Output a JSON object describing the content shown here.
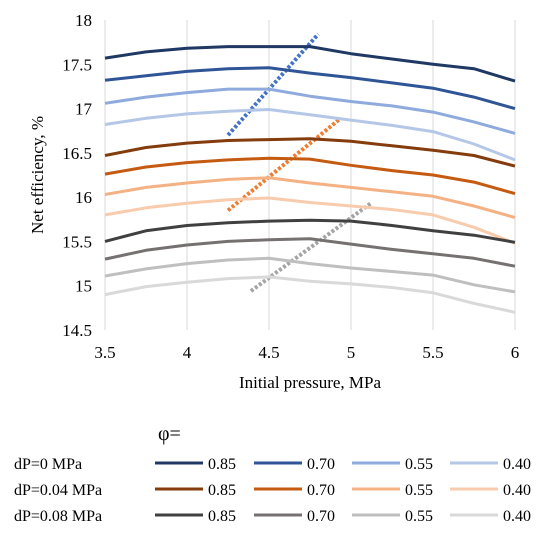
{
  "chart_data": {
    "type": "line",
    "xlabel": "Initial pressure, MPa",
    "ylabel": "Net efficiency, %",
    "xlim": [
      3.5,
      6
    ],
    "ylim": [
      14.5,
      18
    ],
    "x_ticks": [
      "3.5",
      "4",
      "4.5",
      "5",
      "5.5",
      "6"
    ],
    "y_ticks": [
      "14.5",
      "15",
      "15.5",
      "16",
      "16.5",
      "17",
      "17.5",
      "18"
    ],
    "grid": "vertical",
    "legend": {
      "header": "φ=",
      "rows": [
        "dP=0 MPa",
        "dP=0.04 MPa",
        "dP=0.08 MPa"
      ],
      "phi_labels": [
        "0.85",
        "0.70",
        "0.55",
        "0.40"
      ],
      "placement": "bottom"
    },
    "series": [
      {
        "name": "0.85",
        "group": "dP=0 MPa",
        "color": "#1f3864",
        "x": [
          3.5,
          3.75,
          4,
          4.25,
          4.5,
          4.75,
          5,
          5.25,
          5.5,
          5.75,
          6
        ],
        "y": [
          17.57,
          17.64,
          17.68,
          17.7,
          17.7,
          17.7,
          17.62,
          17.56,
          17.5,
          17.45,
          17.31
        ]
      },
      {
        "name": "0.70",
        "group": "dP=0 MPa",
        "color": "#2f5597",
        "x": [
          3.5,
          3.75,
          4,
          4.25,
          4.5,
          4.75,
          5,
          5.25,
          5.5,
          5.75,
          6
        ],
        "y": [
          17.32,
          17.37,
          17.42,
          17.45,
          17.46,
          17.4,
          17.35,
          17.29,
          17.23,
          17.13,
          17.0
        ]
      },
      {
        "name": "0.55",
        "group": "dP=0 MPa",
        "color": "#8faadc",
        "x": [
          3.5,
          3.75,
          4,
          4.25,
          4.5,
          4.75,
          5,
          5.25,
          5.5,
          5.75,
          6
        ],
        "y": [
          17.06,
          17.13,
          17.18,
          17.22,
          17.22,
          17.14,
          17.08,
          17.03,
          16.96,
          16.85,
          16.72
        ]
      },
      {
        "name": "0.40",
        "group": "dP=0 MPa",
        "color": "#b4c7e7",
        "x": [
          3.5,
          3.75,
          4,
          4.25,
          4.5,
          4.75,
          5,
          5.25,
          5.5,
          5.75,
          6
        ],
        "y": [
          16.82,
          16.89,
          16.94,
          16.97,
          16.99,
          16.93,
          16.87,
          16.81,
          16.74,
          16.6,
          16.42
        ]
      },
      {
        "name": "0.85",
        "group": "dP=0.04 MPa",
        "color": "#843c0c",
        "x": [
          3.5,
          3.75,
          4,
          4.25,
          4.5,
          4.75,
          5,
          5.25,
          5.5,
          5.75,
          6
        ],
        "y": [
          16.47,
          16.56,
          16.61,
          16.64,
          16.65,
          16.66,
          16.63,
          16.58,
          16.53,
          16.47,
          16.35
        ]
      },
      {
        "name": "0.70",
        "group": "dP=0.04 MPa",
        "color": "#c55a11",
        "x": [
          3.5,
          3.75,
          4,
          4.25,
          4.5,
          4.75,
          5,
          5.25,
          5.5,
          5.75,
          6
        ],
        "y": [
          16.26,
          16.34,
          16.39,
          16.42,
          16.44,
          16.43,
          16.36,
          16.3,
          16.25,
          16.17,
          16.04
        ]
      },
      {
        "name": "0.55",
        "group": "dP=0.04 MPa",
        "color": "#f4b183",
        "x": [
          3.5,
          3.75,
          4,
          4.25,
          4.5,
          4.75,
          5,
          5.25,
          5.5,
          5.75,
          6
        ],
        "y": [
          16.03,
          16.11,
          16.16,
          16.2,
          16.22,
          16.16,
          16.11,
          16.06,
          16.01,
          15.9,
          15.77
        ]
      },
      {
        "name": "0.40",
        "group": "dP=0.04 MPa",
        "color": "#f8cbad",
        "x": [
          3.5,
          3.75,
          4,
          4.25,
          4.5,
          4.75,
          5,
          5.25,
          5.5,
          5.75,
          6
        ],
        "y": [
          15.8,
          15.88,
          15.93,
          15.97,
          15.99,
          15.94,
          15.9,
          15.86,
          15.8,
          15.66,
          15.48
        ]
      },
      {
        "name": "0.85",
        "group": "dP=0.08 MPa",
        "color": "#404040",
        "x": [
          3.5,
          3.75,
          4,
          4.25,
          4.5,
          4.75,
          5,
          5.25,
          5.5,
          5.75,
          6
        ],
        "y": [
          15.5,
          15.62,
          15.68,
          15.71,
          15.73,
          15.74,
          15.73,
          15.68,
          15.62,
          15.57,
          15.49
        ]
      },
      {
        "name": "0.70",
        "group": "dP=0.08 MPa",
        "color": "#767171",
        "x": [
          3.5,
          3.75,
          4,
          4.25,
          4.5,
          4.75,
          5,
          5.25,
          5.5,
          5.75,
          6
        ],
        "y": [
          15.3,
          15.4,
          15.46,
          15.5,
          15.52,
          15.53,
          15.47,
          15.41,
          15.36,
          15.31,
          15.22
        ]
      },
      {
        "name": "0.55",
        "group": "dP=0.08 MPa",
        "color": "#bfbfbf",
        "x": [
          3.5,
          3.75,
          4,
          4.25,
          4.5,
          4.75,
          5,
          5.25,
          5.5,
          5.75,
          6
        ],
        "y": [
          15.11,
          15.19,
          15.25,
          15.29,
          15.31,
          15.25,
          15.2,
          15.16,
          15.12,
          15.01,
          14.93
        ]
      },
      {
        "name": "0.40",
        "group": "dP=0.08 MPa",
        "color": "#d9d9d9",
        "x": [
          3.5,
          3.75,
          4,
          4.25,
          4.5,
          4.75,
          5,
          5.25,
          5.5,
          5.75,
          6
        ],
        "y": [
          14.9,
          14.99,
          15.04,
          15.08,
          15.1,
          15.05,
          15.02,
          14.98,
          14.92,
          14.8,
          14.7
        ]
      }
    ],
    "trend_lines": [
      {
        "color": "#4472c4",
        "style": "dotted",
        "x": [
          4.25,
          4.8
        ],
        "y": [
          16.7,
          17.84
        ]
      },
      {
        "color": "#ed7d31",
        "style": "dotted",
        "x": [
          4.25,
          4.93
        ],
        "y": [
          15.85,
          16.88
        ]
      },
      {
        "color": "#a5a5a5",
        "style": "dotted",
        "x": [
          4.39,
          5.12
        ],
        "y": [
          14.94,
          15.93
        ]
      }
    ]
  }
}
